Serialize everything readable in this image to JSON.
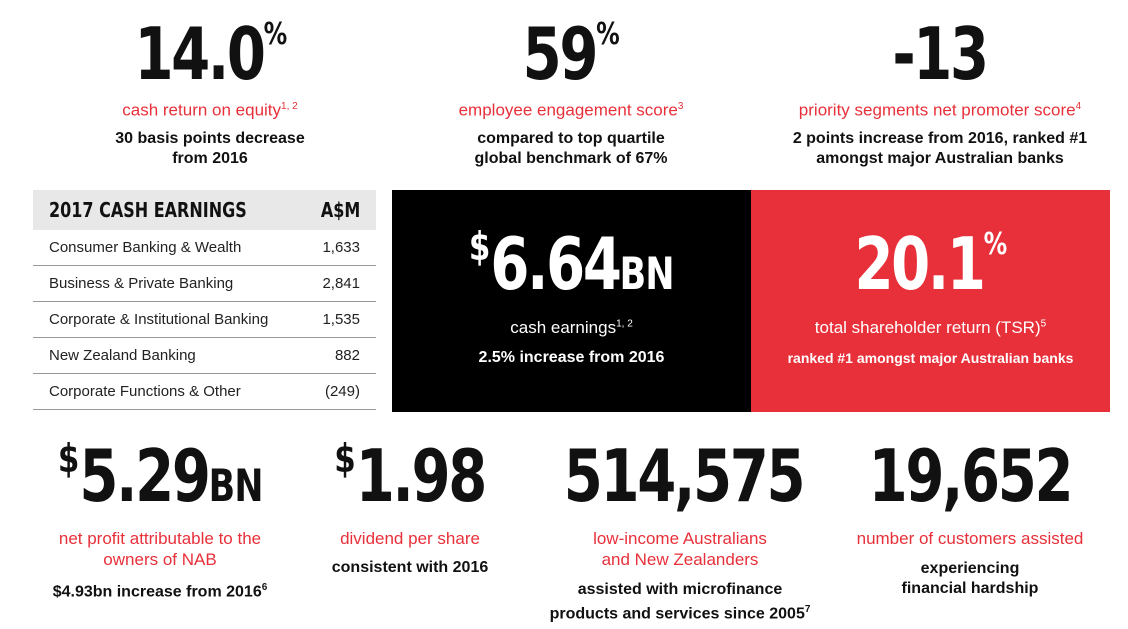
{
  "top": [
    {
      "value": "14.0",
      "suffix": "%",
      "label": "cash return on equity",
      "label_sup": "1, 2",
      "detail1": "30 basis points decrease",
      "detail2": "from 2016"
    },
    {
      "value": "59",
      "suffix": "%",
      "label": "employee engagement score",
      "label_sup": "3",
      "detail1": "compared to top quartile",
      "detail2": "global benchmark of 67%"
    },
    {
      "value": "-13",
      "suffix": "",
      "label": "priority segments net promoter score",
      "label_sup": "4",
      "detail1": "2 points increase from 2016, ranked #1",
      "detail2": "amongst major Australian banks"
    }
  ],
  "table": {
    "title": "2017 CASH EARNINGS",
    "unit": "A$M",
    "rows": [
      {
        "name": "Consumer Banking & Wealth",
        "value": "1,633"
      },
      {
        "name": "Business & Private Banking",
        "value": "2,841"
      },
      {
        "name": "Corporate & Institutional Banking",
        "value": "1,535"
      },
      {
        "name": "New Zealand Banking",
        "value": "882"
      },
      {
        "name": "Corporate Functions & Other",
        "value": "(249)"
      }
    ]
  },
  "black_box": {
    "prefix": "$",
    "value": "6.64",
    "unit": "BN",
    "label": "cash earnings",
    "label_sup": "1, 2",
    "detail": "2.5% increase from 2016"
  },
  "red_box": {
    "value": "20.1",
    "suffix": "%",
    "label": "total shareholder return (TSR)",
    "label_sup": "5",
    "detail": "ranked #1 amongst major Australian banks"
  },
  "bottom": [
    {
      "prefix": "$",
      "value": "5.29",
      "unit": "BN",
      "label1": "net profit attributable to the",
      "label2": "owners of NAB",
      "detail1": "$4.93bn increase from 2016",
      "detail_sup": "6",
      "detail2": ""
    },
    {
      "prefix": "$",
      "value": "1.98",
      "unit": "",
      "label1": "dividend per share",
      "label2": "",
      "detail1": "consistent with 2016",
      "detail_sup": "",
      "detail2": ""
    },
    {
      "prefix": "",
      "value": "514,575",
      "unit": "",
      "label1": "low-income Australians",
      "label2": "and New Zealanders",
      "detail1": "assisted with microfinance",
      "detail2": "products and services since 2005",
      "detail_sup": "7"
    },
    {
      "prefix": "",
      "value": "19,652",
      "unit": "",
      "label1": "number of customers assisted",
      "label2": "",
      "detail1": "experiencing",
      "detail2": "financial hardship",
      "detail_sup": ""
    }
  ]
}
